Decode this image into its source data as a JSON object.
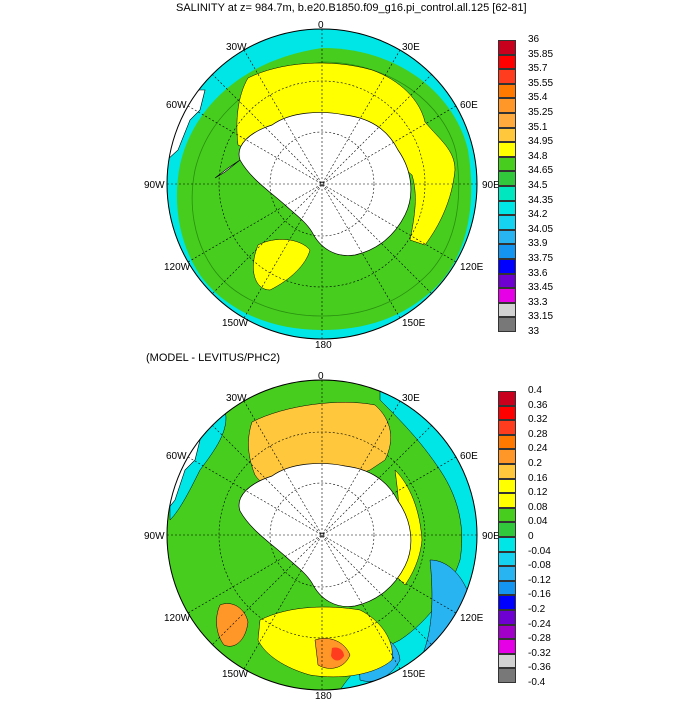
{
  "panel_top": {
    "title": "SALINITY at z= 984.7m, b.e20.B1850.f09_g16.pi_control.all.125 [62-81]",
    "lon_labels": [
      "0",
      "30E",
      "60E",
      "90E",
      "120E",
      "150E",
      "180",
      "150W",
      "120W",
      "90W",
      "60W",
      "30W"
    ],
    "colorbar": {
      "labels": [
        "36",
        "35.85",
        "35.7",
        "35.55",
        "35.4",
        "35.25",
        "35.1",
        "34.95",
        "34.8",
        "34.65",
        "34.5",
        "34.35",
        "34.2",
        "34.05",
        "33.9",
        "33.75",
        "33.6",
        "33.45",
        "33.3",
        "33.15",
        "33"
      ],
      "colors": [
        "#c8001e",
        "#ff0000",
        "#ff3c1e",
        "#ff7800",
        "#ff9628",
        "#ffaa3c",
        "#ffc83c",
        "#ffff00",
        "#46cd1e",
        "#32c83c",
        "#00e6be",
        "#00e6e6",
        "#14d2f0",
        "#28b4f0",
        "#1496f0",
        "#0000ff",
        "#6e00d2",
        "#e600e6",
        "#d2d2d2",
        "#787878"
      ]
    }
  },
  "panel_bottom": {
    "title": "(MODEL - LEVITUS/PHC2)",
    "lon_labels": [
      "0",
      "30E",
      "60E",
      "90E",
      "120E",
      "150E",
      "180",
      "150W",
      "120W",
      "90W",
      "60W",
      "30W"
    ],
    "colorbar": {
      "labels": [
        "0.4",
        "0.36",
        "0.32",
        "0.28",
        "0.24",
        "0.2",
        "0.16",
        "0.12",
        "0.08",
        "0.04",
        "0",
        "-0.04",
        "-0.08",
        "-0.12",
        "-0.16",
        "-0.2",
        "-0.24",
        "-0.28",
        "-0.32",
        "-0.36",
        "-0.4"
      ],
      "colors": [
        "#c8001e",
        "#ff0000",
        "#ff3c1e",
        "#ff7800",
        "#ff9628",
        "#ffc83c",
        "#ffff00",
        "#ffff00",
        "#46cd1e",
        "#32c83c",
        "#00e6e6",
        "#14d2f0",
        "#28b4f0",
        "#1496f0",
        "#0000ff",
        "#6e00d2",
        "#a000c8",
        "#e600e6",
        "#d2d2d2",
        "#787878"
      ]
    }
  }
}
